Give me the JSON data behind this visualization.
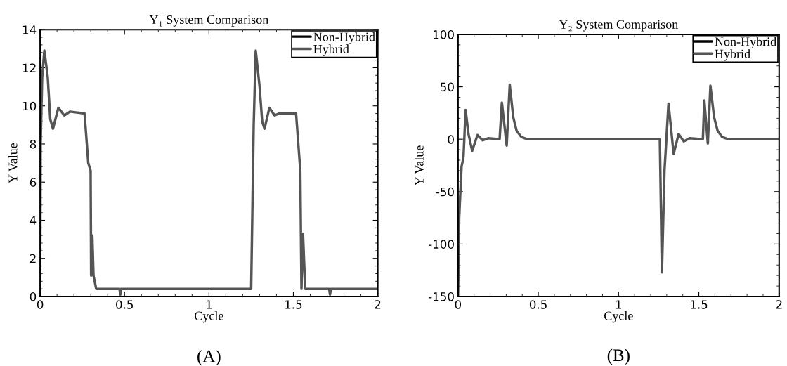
{
  "chart_data": [
    {
      "type": "line",
      "title": "Y₁ System Comparison",
      "xlabel": "Cycle",
      "ylabel": "Y Value",
      "annotations": [
        "(A)"
      ],
      "legend": "top right",
      "xlim": [
        0,
        2
      ],
      "ylim": [
        0,
        14
      ],
      "xticks": [
        0,
        0.5,
        1,
        1.5,
        2
      ],
      "yticks": [
        0,
        2,
        4,
        6,
        8,
        10,
        12,
        14
      ],
      "x": [
        0,
        0.003,
        0.012,
        0.025,
        0.045,
        0.06,
        0.076,
        0.108,
        0.143,
        0.177,
        0.263,
        0.285,
        0.299,
        0.302,
        0.309,
        0.316,
        0.332,
        0.47,
        0.475,
        0.48,
        1.25,
        1.265,
        1.277,
        1.3,
        1.315,
        1.329,
        1.358,
        1.389,
        1.415,
        1.516,
        1.541,
        1.548,
        1.557,
        1.57,
        1.712,
        1.717,
        1.722,
        2
      ],
      "series": [
        {
          "name": "Non-Hybrid",
          "color": "#000000",
          "values": [
            null,
            null,
            null,
            null,
            null,
            null,
            null,
            null,
            null,
            null,
            null,
            null,
            null,
            null,
            null,
            null,
            null,
            null,
            null,
            null,
            null,
            null,
            null,
            null,
            null,
            null,
            null,
            null,
            null,
            null,
            null,
            null,
            null,
            null,
            null,
            null,
            null,
            null
          ]
        },
        {
          "name": "Hybrid",
          "color": "#555555",
          "values": [
            0,
            8,
            11.5,
            12.9,
            11.5,
            9.3,
            8.8,
            9.9,
            9.5,
            9.7,
            9.6,
            7.0,
            6.6,
            1.1,
            3.2,
            1.1,
            0.4,
            0.4,
            0.1,
            0.4,
            0.4,
            9,
            12.9,
            11,
            9.2,
            8.8,
            9.9,
            9.5,
            9.6,
            9.6,
            6.6,
            0.4,
            3.3,
            0.4,
            0.4,
            0.1,
            0.4,
            0.4
          ]
        }
      ]
    },
    {
      "type": "line",
      "title": "Y₂ System Comparison",
      "xlabel": "Cycle",
      "ylabel": "Y Value",
      "annotations": [
        "(B)"
      ],
      "legend": "top right",
      "xlim": [
        0,
        2
      ],
      "ylim": [
        -150,
        100
      ],
      "xticks": [
        0,
        0.5,
        1,
        1.5,
        2
      ],
      "yticks": [
        -150,
        -100,
        -50,
        0,
        50,
        100
      ],
      "x": [
        0,
        0.007,
        0.022,
        0.034,
        0.047,
        0.065,
        0.088,
        0.121,
        0.154,
        0.19,
        0.259,
        0.273,
        0.303,
        0.322,
        0.344,
        0.365,
        0.395,
        0.431,
        1.257,
        1.27,
        1.286,
        1.311,
        1.343,
        1.374,
        1.406,
        1.442,
        1.525,
        1.534,
        1.556,
        1.572,
        1.595,
        1.617,
        1.646,
        1.683,
        2
      ],
      "series": [
        {
          "name": "Non-Hybrid",
          "color": "#000000",
          "values": [
            null,
            null,
            null,
            null,
            null,
            null,
            null,
            null,
            null,
            null,
            null,
            null,
            null,
            null,
            null,
            null,
            null,
            null,
            null,
            null,
            null,
            null,
            null,
            null,
            null,
            null,
            null,
            null,
            null,
            null,
            null,
            null,
            null,
            null,
            null
          ]
        },
        {
          "name": "Hybrid",
          "color": "#555555",
          "values": [
            -150,
            -75,
            -26,
            -17,
            28,
            5,
            -11,
            4,
            -1,
            1,
            0,
            35,
            -6,
            52,
            21,
            8,
            2,
            0,
            0,
            -127,
            -30,
            34,
            -14,
            5,
            -2,
            1,
            0,
            37,
            -4,
            51,
            21,
            8,
            2,
            0,
            0
          ]
        }
      ]
    }
  ]
}
